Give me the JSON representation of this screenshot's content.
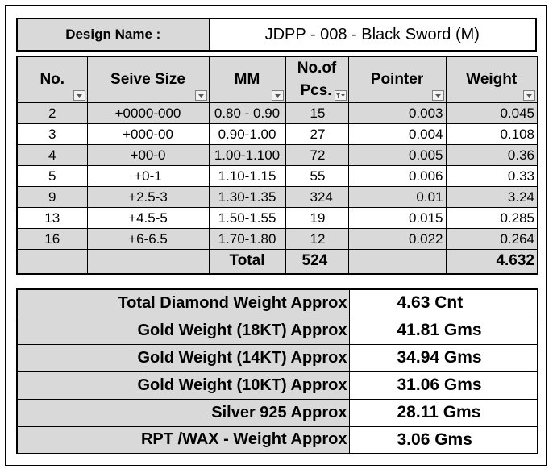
{
  "design": {
    "label": "Design Name :",
    "value": "JDPP - 008 - Black Sword (M)"
  },
  "columns": {
    "no": "No.",
    "seive": "Seive Size",
    "mm": "MM",
    "pcs_line1": "No.of",
    "pcs_line2": "Pcs.",
    "pointer": "Pointer",
    "weight": "Weight"
  },
  "rows": [
    {
      "no": "2",
      "seive": "+0000-000",
      "mm": "0.80 - 0.90",
      "pcs": "15",
      "pointer": "0.003",
      "weight": "0.045"
    },
    {
      "no": "3",
      "seive": "+000-00",
      "mm": "0.90-1.00",
      "pcs": "27",
      "pointer": "0.004",
      "weight": "0.108"
    },
    {
      "no": "4",
      "seive": "+00-0",
      "mm": "1.00-1.100",
      "pcs": "72",
      "pointer": "0.005",
      "weight": "0.36"
    },
    {
      "no": "5",
      "seive": "+0-1",
      "mm": "1.10-1.15",
      "pcs": "55",
      "pointer": "0.006",
      "weight": "0.33"
    },
    {
      "no": "9",
      "seive": "+2.5-3",
      "mm": "1.30-1.35",
      "pcs": "324",
      "pointer": "0.01",
      "weight": "3.24"
    },
    {
      "no": "13",
      "seive": "+4.5-5",
      "mm": "1.50-1.55",
      "pcs": "19",
      "pointer": "0.015",
      "weight": "0.285"
    },
    {
      "no": "16",
      "seive": "+6-6.5",
      "mm": "1.70-1.80",
      "pcs": "12",
      "pointer": "0.022",
      "weight": "0.264"
    }
  ],
  "total": {
    "label": "Total",
    "pcs": "524",
    "weight": "4.632"
  },
  "summary": [
    {
      "label": "Total Diamond Weight Approx",
      "value": "4.63 Cnt"
    },
    {
      "label": "Gold Weight (18KT) Approx",
      "value": "41.81 Gms"
    },
    {
      "label": "Gold Weight (14KT) Approx",
      "value": "34.94 Gms"
    },
    {
      "label": "Gold Weight (10KT) Approx",
      "value": "31.06 Gms"
    },
    {
      "label": "Silver 925 Approx",
      "value": "28.11 Gms"
    },
    {
      "label": "RPT /WAX - Weight Approx",
      "value": "3.06 Gms"
    }
  ]
}
